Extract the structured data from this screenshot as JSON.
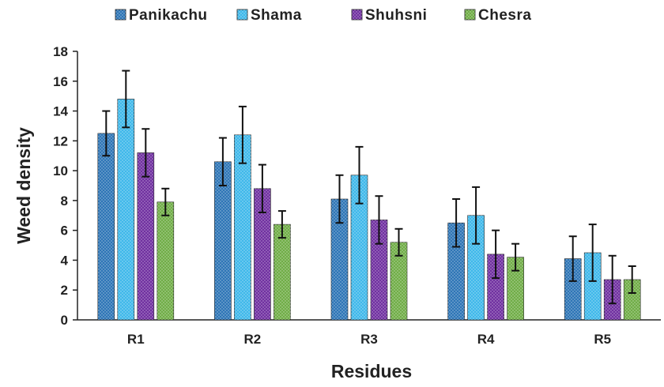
{
  "chart_data": {
    "type": "bar",
    "xlabel": "Residues",
    "ylabel": "Weed density",
    "categories": [
      "R1",
      "R2",
      "R3",
      "R4",
      "R5"
    ],
    "ylim": [
      0,
      18
    ],
    "yticks": [
      0,
      2,
      4,
      6,
      8,
      10,
      12,
      14,
      16,
      18
    ],
    "grid": false,
    "legend_position": "top",
    "error_bars": true,
    "series": [
      {
        "name": "Panikachu",
        "color": "#2e75b6",
        "values": [
          12.5,
          10.6,
          8.1,
          6.5,
          4.1
        ],
        "errors": [
          1.5,
          1.6,
          1.6,
          1.6,
          1.5
        ]
      },
      {
        "name": "Shama",
        "color": "#3fb8ea",
        "values": [
          14.8,
          12.4,
          9.7,
          7.0,
          4.5
        ],
        "errors": [
          1.9,
          1.9,
          1.9,
          1.9,
          1.9
        ]
      },
      {
        "name": "Shuhsni",
        "color": "#7030a0",
        "values": [
          11.2,
          8.8,
          6.7,
          4.4,
          2.7
        ],
        "errors": [
          1.6,
          1.6,
          1.6,
          1.6,
          1.6
        ]
      },
      {
        "name": "Chesra",
        "color": "#70ad47",
        "values": [
          7.9,
          6.4,
          5.2,
          4.2,
          2.7
        ],
        "errors": [
          0.9,
          0.9,
          0.9,
          0.9,
          0.9
        ]
      }
    ]
  }
}
